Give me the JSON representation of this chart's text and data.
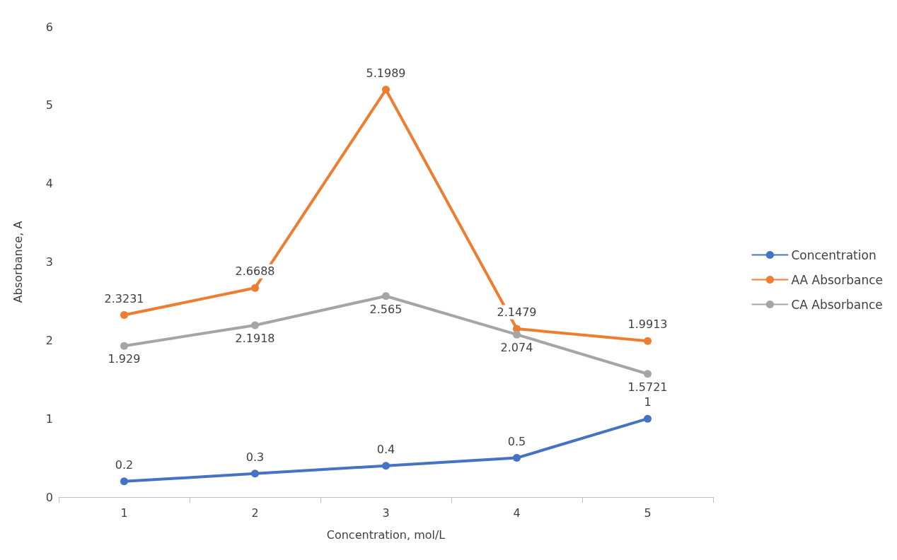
{
  "chart_data": {
    "type": "line",
    "xlabel": "Concentration, mol/L",
    "ylabel": "Absorbance, A",
    "categories": [
      "1",
      "2",
      "3",
      "4",
      "5"
    ],
    "series": [
      {
        "name": "Concentration",
        "color": "#4472c4",
        "values": [
          0.2,
          0.3,
          0.4,
          0.5,
          1
        ]
      },
      {
        "name": "AA Absorbance",
        "color": "#ed7d31",
        "values": [
          2.3231,
          2.6688,
          5.1989,
          2.1479,
          1.9913
        ]
      },
      {
        "name": "CA Absorbance",
        "color": "#a5a5a5",
        "values": [
          1.929,
          2.1918,
          2.565,
          2.074,
          1.5721
        ]
      }
    ],
    "ylim": [
      0,
      6
    ],
    "yticks": [
      0,
      1,
      2,
      3,
      4,
      5,
      6
    ],
    "data_labels": true,
    "legend": "right",
    "marker": "circle"
  }
}
